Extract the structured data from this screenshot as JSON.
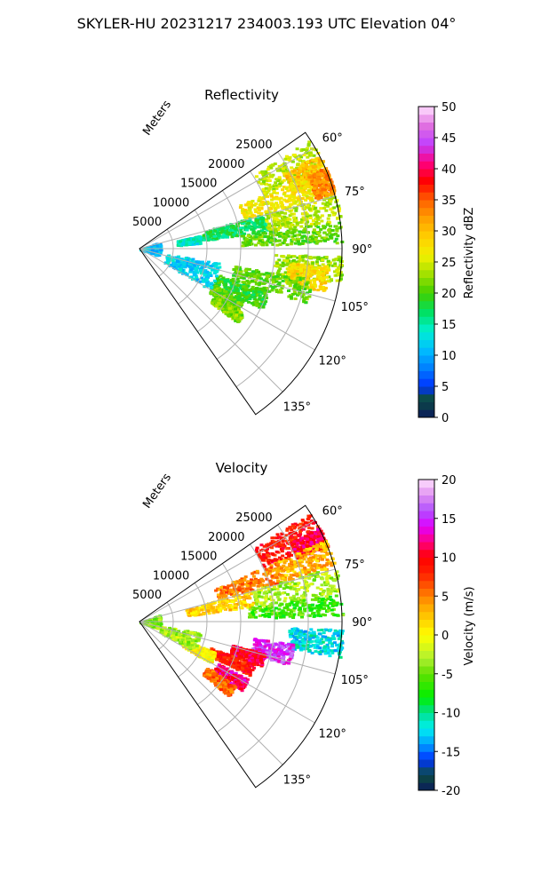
{
  "figure": {
    "suptitle": "SKYLER-HU  20231217  234003.193 UTC Elevation 04°"
  },
  "chart_data": [
    {
      "type": "heatmap",
      "projection": "polar-sector",
      "title": "Reflectivity",
      "range_axis_label": "Meters",
      "range_ticks": [
        "5000",
        "10000",
        "15000",
        "20000",
        "25000"
      ],
      "range_tick_values": [
        5000,
        10000,
        15000,
        20000,
        25000
      ],
      "range_max": 30000,
      "azimuth_ticks": [
        "60°",
        "75°",
        "90°",
        "105°",
        "120°",
        "135°"
      ],
      "azimuth_tick_values": [
        60,
        75,
        90,
        105,
        120,
        135
      ],
      "azimuth_range": [
        55,
        145
      ],
      "grid": true,
      "colorbar": {
        "label": "Reflectivity dBZ",
        "min": 0,
        "max": 50,
        "ticks": [
          "0",
          "5",
          "10",
          "15",
          "20",
          "25",
          "30",
          "35",
          "40",
          "45",
          "50"
        ],
        "tick_values": [
          0,
          5,
          10,
          15,
          20,
          25,
          30,
          35,
          40,
          45,
          50
        ],
        "colormap": [
          [
            0,
            "#0a1a5c"
          ],
          [
            3,
            "#0d4d40"
          ],
          [
            5,
            "#0033ff"
          ],
          [
            8,
            "#0080ff"
          ],
          [
            11,
            "#00c0ff"
          ],
          [
            14,
            "#00f0d0"
          ],
          [
            17,
            "#00e060"
          ],
          [
            20,
            "#40d000"
          ],
          [
            23,
            "#a0e000"
          ],
          [
            26,
            "#f0f000"
          ],
          [
            29,
            "#ffd000"
          ],
          [
            32,
            "#ffa000"
          ],
          [
            35,
            "#ff6000"
          ],
          [
            38,
            "#ff0000"
          ],
          [
            41,
            "#ff0080"
          ],
          [
            44,
            "#c040ff"
          ],
          [
            47,
            "#e070e0"
          ],
          [
            50,
            "#ffe0ff"
          ]
        ]
      },
      "cells": [
        {
          "az": [
            57,
            66
          ],
          "r": [
            20000,
            30000
          ],
          "value": 24
        },
        {
          "az": [
            62,
            70
          ],
          "r": [
            24000,
            30000
          ],
          "value": 30
        },
        {
          "az": [
            66,
            74
          ],
          "r": [
            16000,
            27000
          ],
          "value": 27
        },
        {
          "az": [
            66,
            74
          ],
          "r": [
            27000,
            30000
          ],
          "value": 33
        },
        {
          "az": [
            74,
            82
          ],
          "r": [
            9000,
            19000
          ],
          "value": 17
        },
        {
          "az": [
            74,
            82
          ],
          "r": [
            19000,
            30000
          ],
          "value": 24
        },
        {
          "az": [
            82,
            88
          ],
          "r": [
            15000,
            30000
          ],
          "value": 21
        },
        {
          "az": [
            77,
            84
          ],
          "r": [
            5500,
            9000
          ],
          "value": 14
        },
        {
          "az": [
            92,
            100
          ],
          "r": [
            20000,
            30000
          ],
          "value": 23
        },
        {
          "az": [
            95,
            103
          ],
          "r": [
            22000,
            28000
          ],
          "value": 28
        },
        {
          "az": [
            100,
            108
          ],
          "r": [
            14000,
            26000
          ],
          "value": 21
        },
        {
          "az": [
            108,
            116
          ],
          "r": [
            12000,
            20000
          ],
          "value": 19
        },
        {
          "az": [
            116,
            122
          ],
          "r": [
            12000,
            17000
          ],
          "value": 21
        },
        {
          "az": [
            122,
            127
          ],
          "r": [
            13000,
            18000
          ],
          "value": 22
        },
        {
          "az": [
            100,
            120
          ],
          "r": [
            4000,
            12000
          ],
          "value": 12
        },
        {
          "az": [
            70,
            110
          ],
          "r": [
            0,
            3000
          ],
          "value": 11
        }
      ]
    },
    {
      "type": "heatmap",
      "projection": "polar-sector",
      "title": "Velocity",
      "range_axis_label": "Meters",
      "range_ticks": [
        "5000",
        "10000",
        "15000",
        "20000",
        "25000"
      ],
      "range_tick_values": [
        5000,
        10000,
        15000,
        20000,
        25000
      ],
      "range_max": 30000,
      "azimuth_ticks": [
        "60°",
        "75°",
        "90°",
        "105°",
        "120°",
        "135°"
      ],
      "azimuth_tick_values": [
        60,
        75,
        90,
        105,
        120,
        135
      ],
      "azimuth_range": [
        55,
        145
      ],
      "grid": true,
      "colorbar": {
        "label": "Velocity (m/s)",
        "min": -20,
        "max": 20,
        "ticks": [
          "-20",
          "-15",
          "-10",
          "-5",
          "0",
          "5",
          "10",
          "15",
          "20"
        ],
        "tick_values": [
          -20,
          -15,
          -10,
          -5,
          0,
          5,
          10,
          15,
          20
        ],
        "colormap": [
          [
            -20,
            "#0a1a5c"
          ],
          [
            -18,
            "#0d4d40"
          ],
          [
            -16,
            "#0033ff"
          ],
          [
            -14,
            "#00a0ff"
          ],
          [
            -12,
            "#00f0f0"
          ],
          [
            -10,
            "#00e090"
          ],
          [
            -8,
            "#00f000"
          ],
          [
            -5,
            "#60e000"
          ],
          [
            -3,
            "#b0f030"
          ],
          [
            0,
            "#ffff00"
          ],
          [
            2,
            "#ffd000"
          ],
          [
            4,
            "#ffa000"
          ],
          [
            6,
            "#ff6000"
          ],
          [
            8,
            "#ff2000"
          ],
          [
            10,
            "#ff0000"
          ],
          [
            12,
            "#ff0080"
          ],
          [
            14,
            "#e000ff"
          ],
          [
            16,
            "#b050ff"
          ],
          [
            18,
            "#e090f0"
          ],
          [
            20,
            "#ffe0ff"
          ]
        ]
      },
      "cells": [
        {
          "az": [
            57,
            66
          ],
          "r": [
            20000,
            30000
          ],
          "value": 9
        },
        {
          "az": [
            62,
            68
          ],
          "r": [
            25000,
            30000
          ],
          "value": 11
        },
        {
          "az": [
            66,
            74
          ],
          "r": [
            12000,
            22000
          ],
          "value": 5
        },
        {
          "az": [
            66,
            74
          ],
          "r": [
            22000,
            30000
          ],
          "value": 3
        },
        {
          "az": [
            74,
            82
          ],
          "r": [
            7000,
            17000
          ],
          "value": 2
        },
        {
          "az": [
            74,
            82
          ],
          "r": [
            17000,
            30000
          ],
          "value": -3
        },
        {
          "az": [
            82,
            88
          ],
          "r": [
            16000,
            30000
          ],
          "value": -6
        },
        {
          "az": [
            92,
            100
          ],
          "r": [
            22000,
            30000
          ],
          "value": -12
        },
        {
          "az": [
            98,
            106
          ],
          "r": [
            17000,
            23000
          ],
          "value": 15
        },
        {
          "az": [
            104,
            110
          ],
          "r": [
            14000,
            19000
          ],
          "value": 11
        },
        {
          "az": [
            110,
            116
          ],
          "r": [
            11000,
            18000
          ],
          "value": 9
        },
        {
          "az": [
            112,
            120
          ],
          "r": [
            7000,
            12000
          ],
          "value": 0
        },
        {
          "az": [
            118,
            124
          ],
          "r": [
            13000,
            18000
          ],
          "value": 12
        },
        {
          "az": [
            124,
            130
          ],
          "r": [
            12000,
            17000
          ],
          "value": 6
        },
        {
          "az": [
            100,
            118
          ],
          "r": [
            3000,
            9000
          ],
          "value": -3
        },
        {
          "az": [
            70,
            110
          ],
          "r": [
            0,
            3000
          ],
          "value": -4
        }
      ]
    }
  ]
}
